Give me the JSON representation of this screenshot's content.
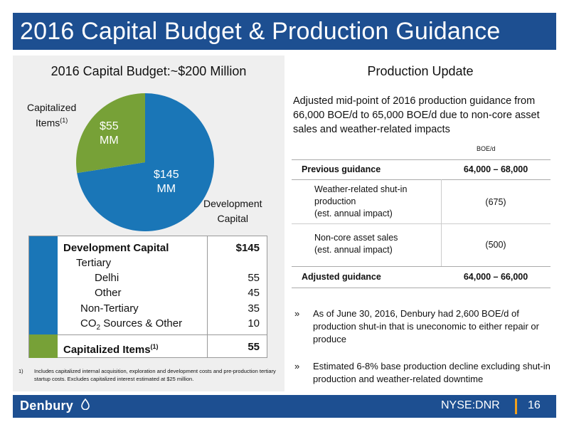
{
  "title": "2016 Capital Budget & Production Guidance",
  "left": {
    "heading": "2016 Capital Budget:~$200 Million",
    "pie": {
      "cap_label_line1": "Capitalized",
      "cap_label_line2": "Items",
      "cap_label_sup": "(1)",
      "dev_label_line1": "Development",
      "dev_label_line2": "Capital",
      "cap_value_line1": "$55",
      "cap_value_line2": "MM",
      "dev_value_line1": "$145",
      "dev_value_line2": "MM",
      "colors": {
        "development": "#1a76b7",
        "capitalized": "#77a137"
      }
    },
    "breakdown": {
      "dev_header": "Development Capital",
      "dev_total": "$145",
      "tertiary": "Tertiary",
      "delhi": "Delhi",
      "delhi_value": "55",
      "other": "Other",
      "other_value": "45",
      "non_tertiary": "Non-Tertiary",
      "non_tertiary_value": "35",
      "co2_prefix": "CO",
      "co2_sub": "2",
      "co2_suffix": " Sources & Other",
      "co2_value": "10",
      "cap_header": "Capitalized Items",
      "cap_sup": "(1)",
      "cap_value": "55"
    },
    "footnote_num": "1)",
    "footnote_text": "Includes capitalized internal acquisition, exploration and development costs and pre-production tertiary startup costs. Excludes capitalized interest estimated at $25 million."
  },
  "right": {
    "heading": "Production Update",
    "intro": "Adjusted mid-point of 2016 production guidance from 66,000 BOE/d to 65,000 BOE/d due to non-core asset sales and weather-related impacts",
    "unit": "BOE/d",
    "table": {
      "prev_label": "Previous guidance",
      "prev_value": "64,000 – 68,000",
      "weather_line1": "Weather-related shut-in",
      "weather_line2": "production",
      "weather_line3": "(est. annual impact)",
      "weather_value": "(675)",
      "noncore_line1": "Non-core asset sales",
      "noncore_line2": "(est. annual impact)",
      "noncore_value": "(500)",
      "adj_label": "Adjusted guidance",
      "adj_value": "64,000 – 66,000"
    },
    "bullets": [
      "As of June 30, 2016, Denbury had 2,600 BOE/d of production shut-in that is uneconomic to either repair or produce",
      "Estimated 6-8% base production decline excluding shut-in production and weather-related downtime"
    ],
    "bullet_mark": "»"
  },
  "footer": {
    "logo": "Denbury",
    "ticker": "NYSE:DNR",
    "page": "16",
    "accent": "#f2a11d"
  }
}
